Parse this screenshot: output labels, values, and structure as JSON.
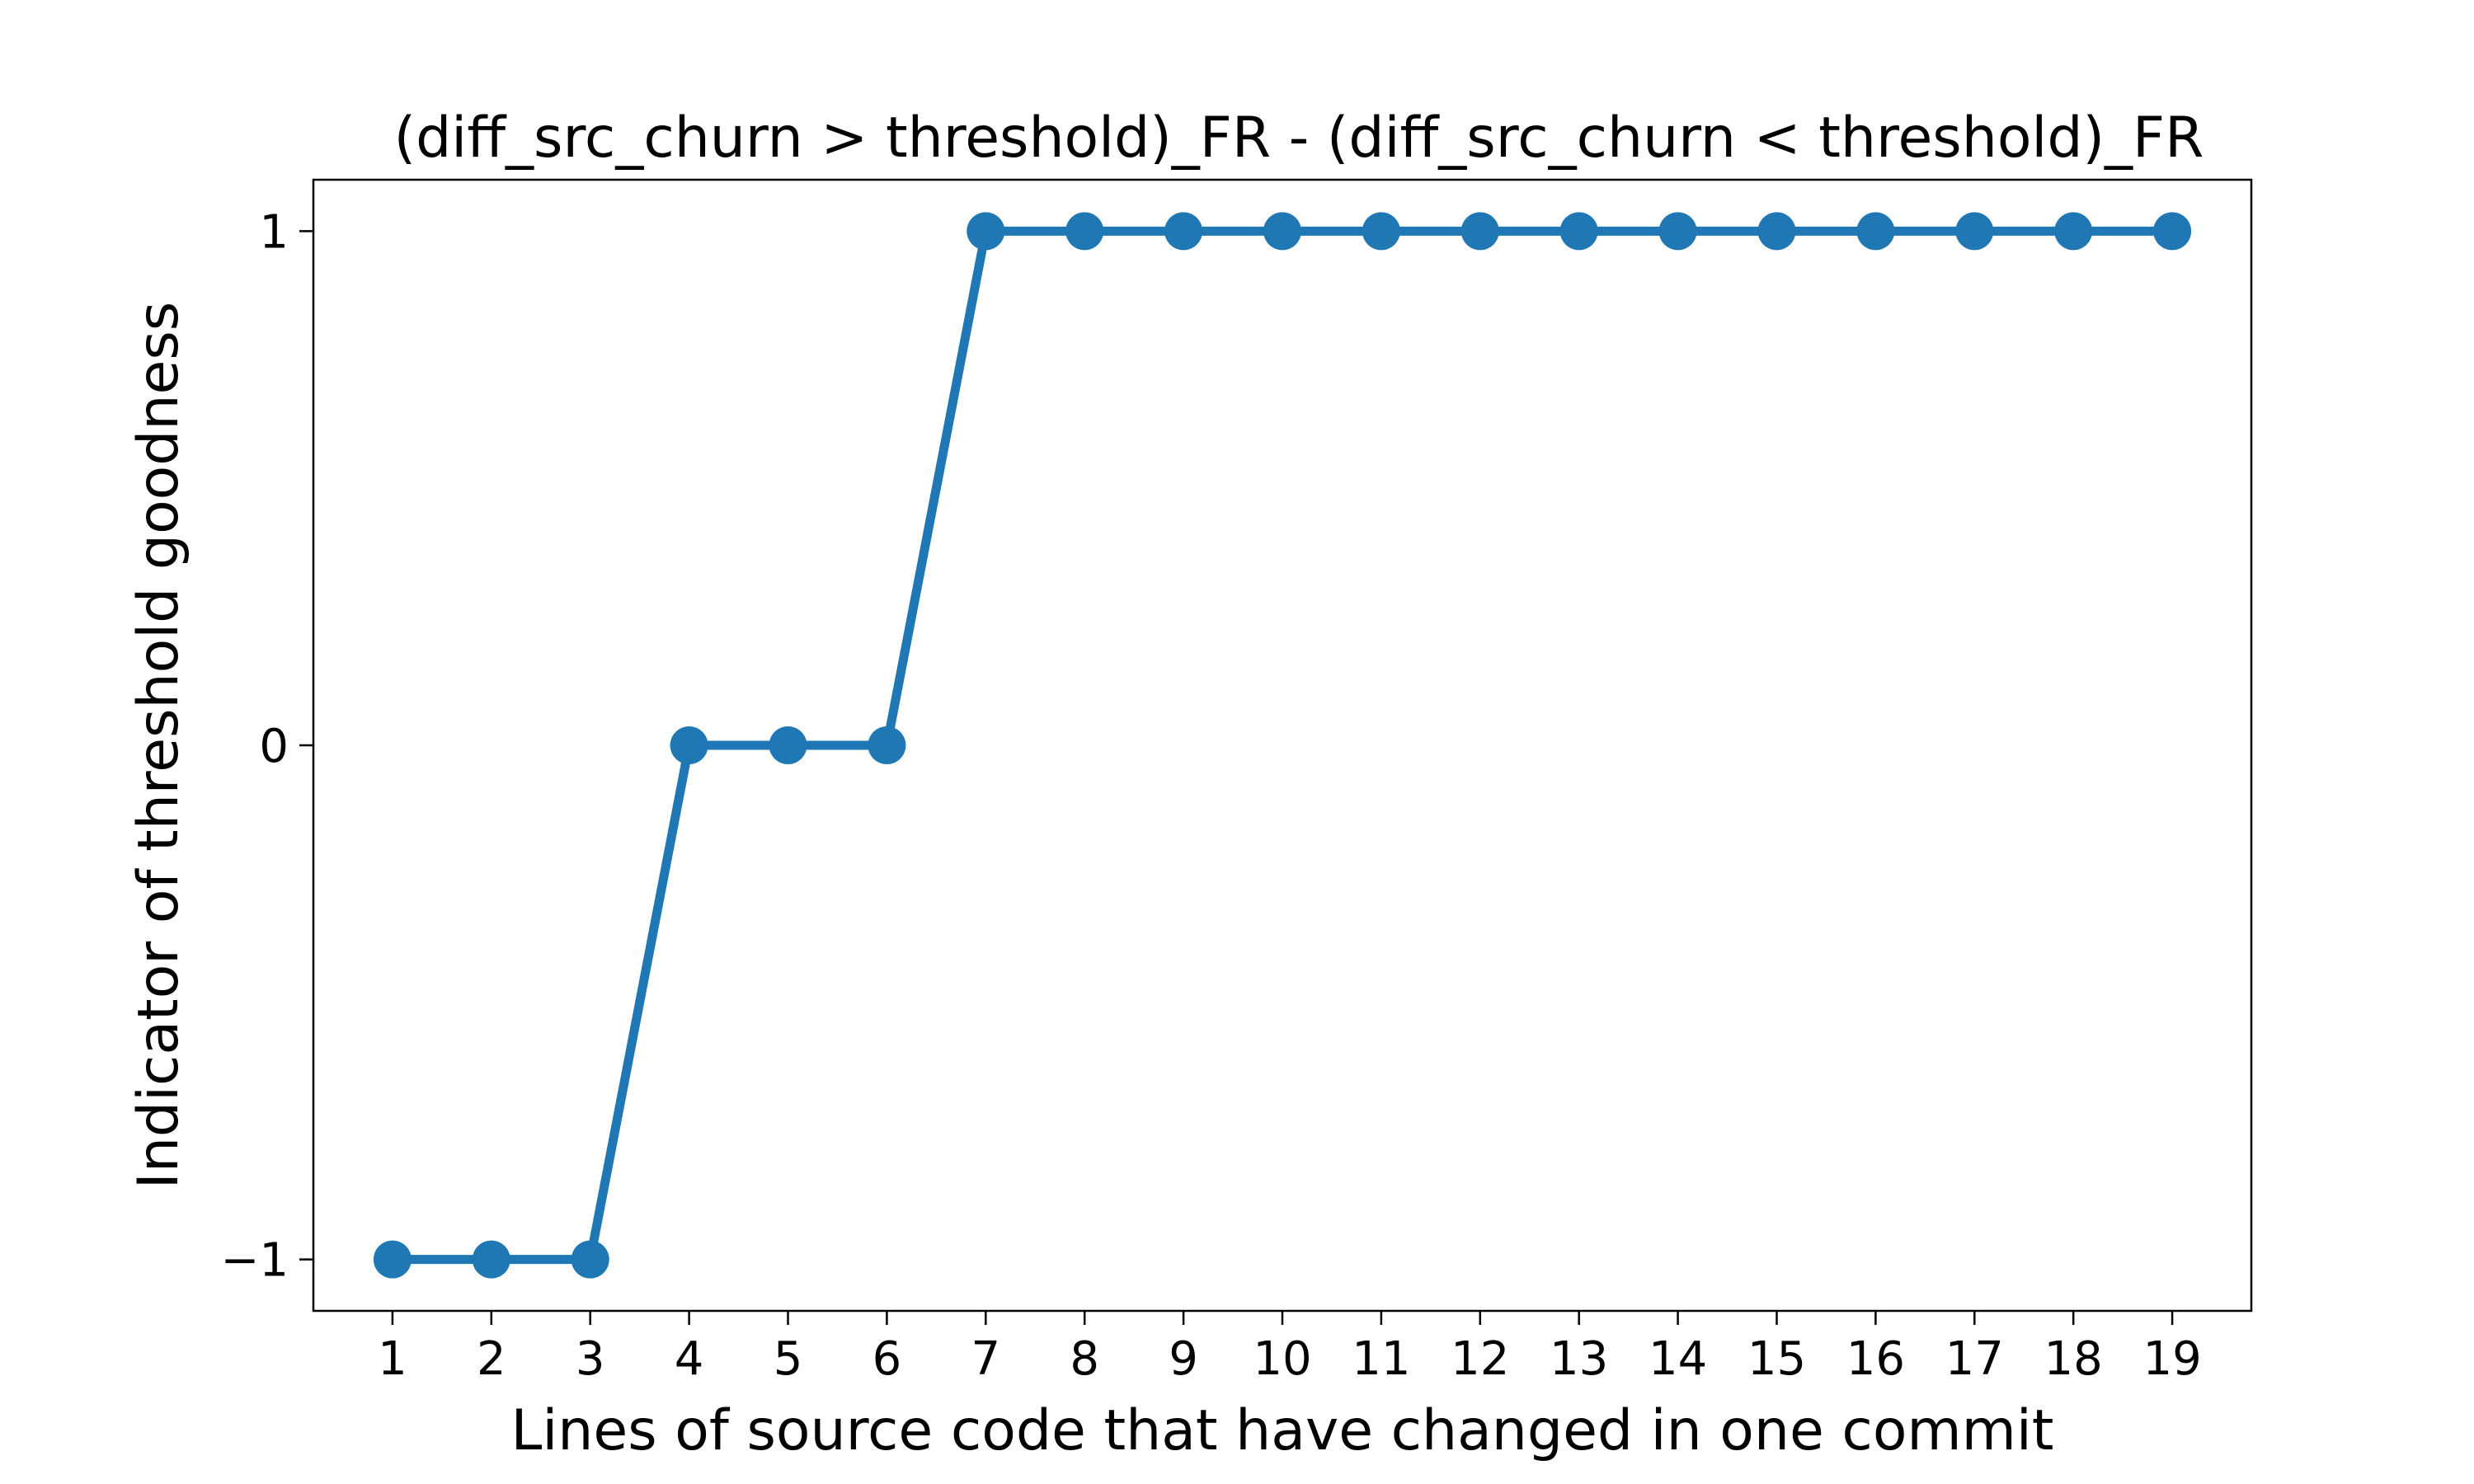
{
  "chart_data": {
    "type": "line",
    "title": "(diff_src_churn > threshold)_FR - (diff_src_churn < threshold)_FR",
    "xlabel": "Lines of source code that have changed in one commit",
    "ylabel": "Indicator of threshold goodness",
    "x": [
      1,
      2,
      3,
      4,
      5,
      6,
      7,
      8,
      9,
      10,
      11,
      12,
      13,
      14,
      15,
      16,
      17,
      18,
      19
    ],
    "series": [
      {
        "values": [
          -1,
          -1,
          -1,
          0,
          0,
          0,
          1,
          1,
          1,
          1,
          1,
          1,
          1,
          1,
          1,
          1,
          1,
          1,
          1
        ],
        "color": "#1f77b4",
        "marker": "circle"
      }
    ],
    "xticks": [
      "1",
      "2",
      "3",
      "4",
      "5",
      "6",
      "7",
      "8",
      "9",
      "10",
      "11",
      "12",
      "13",
      "14",
      "15",
      "16",
      "17",
      "18",
      "19"
    ],
    "yticks": [
      {
        "value": -1,
        "label": "−1"
      },
      {
        "value": 0,
        "label": "0"
      },
      {
        "value": 1,
        "label": "1"
      }
    ],
    "xlim": [
      0.2,
      19.8
    ],
    "ylim": [
      -1.1,
      1.1
    ],
    "grid": false,
    "legend": false
  }
}
